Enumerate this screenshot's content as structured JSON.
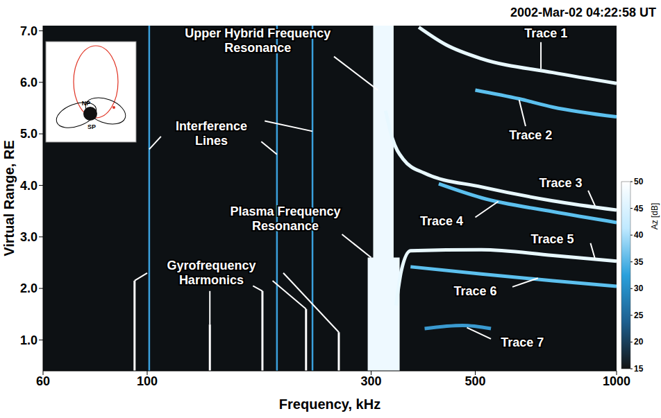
{
  "chart_data": {
    "type": "line",
    "title": "2002-Mar-02 04:22:58 UT",
    "x_label": "Frequency, kHz",
    "y_label": "Virtual Range, RE",
    "log": "x",
    "grid": false,
    "xlim": [
      60,
      1000
    ],
    "xticks": [
      60,
      100,
      300,
      500,
      1000
    ],
    "ylim": [
      0.4,
      7.1
    ],
    "yticks": [
      {
        "value": 1,
        "label": "1.0"
      },
      {
        "value": 2,
        "label": "2.0"
      },
      {
        "value": 3,
        "label": "3.0"
      },
      {
        "value": 4,
        "label": "4.0"
      },
      {
        "value": 5,
        "label": "5.0"
      },
      {
        "value": 6,
        "label": "6.0"
      },
      {
        "value": 7,
        "label": "7.0"
      }
    ],
    "series": [
      {
        "name": "Trace 1",
        "color": "#e8f8ff",
        "x": [
          379,
          433,
          515,
          731,
          1000
        ],
        "values": [
          7.07,
          6.73,
          6.46,
          6.19,
          5.98
        ],
        "label": {
          "x": 707,
          "y": 6.95
        },
        "pointer": {
          "from": [
            690,
            6.78
          ],
          "to": [
            690,
            6.26
          ]
        }
      },
      {
        "name": "Trace 2",
        "color": "#5cc0ee",
        "x": [
          500,
          620,
          731,
          1000
        ],
        "values": [
          5.85,
          5.68,
          5.52,
          5.33
        ],
        "label": {
          "x": 656,
          "y": 4.97
        },
        "pointer": {
          "from": [
            640,
            5.15
          ],
          "to": [
            620,
            5.66
          ]
        }
      },
      {
        "name": "Trace 3",
        "color": "#e8f8ff",
        "x": [
          322,
          333,
          351,
          389,
          515,
          731,
          1000
        ],
        "values": [
          5.45,
          4.91,
          4.51,
          4.24,
          3.97,
          3.7,
          3.52
        ],
        "label": {
          "x": 760,
          "y": 4.05
        },
        "pointer": {
          "from": [
            870,
            3.9
          ],
          "to": [
            900,
            3.6
          ]
        }
      },
      {
        "name": "Trace 4",
        "color": "#5cc0ee",
        "x": [
          418,
          515,
          731,
          1000
        ],
        "values": [
          4.03,
          3.76,
          3.49,
          3.28
        ],
        "label": {
          "x": 424,
          "y": 3.3
        },
        "pointer": {
          "from": [
            500,
            3.38
          ],
          "to": [
            560,
            3.69
          ]
        }
      },
      {
        "name": "Trace 5",
        "color": "#e8f8ff",
        "x": [
          339,
          348,
          364,
          515,
          731,
          1000
        ],
        "values": [
          1.67,
          2.35,
          2.73,
          2.75,
          2.64,
          2.53
        ],
        "label": {
          "x": 730,
          "y": 2.95
        },
        "pointer": {
          "from": [
            880,
            2.88
          ],
          "to": [
            900,
            2.57
          ]
        }
      },
      {
        "name": "Trace 6",
        "color": "#5cc0ee",
        "x": [
          364,
          515,
          731,
          1000
        ],
        "values": [
          2.42,
          2.28,
          2.15,
          2.04
        ],
        "label": {
          "x": 500,
          "y": 1.95
        },
        "pointer": {
          "from": [
            600,
            2.03
          ],
          "to": [
            680,
            2.2
          ]
        }
      },
      {
        "name": "Trace 7",
        "color": "#3a9ad0",
        "x": [
          390,
          470,
          540
        ],
        "values": [
          1.22,
          1.28,
          1.22
        ],
        "label": {
          "x": 630,
          "y": 0.95
        },
        "pointer": {
          "from": [
            540,
            1.02
          ],
          "to": [
            480,
            1.24
          ]
        }
      }
    ],
    "bands": {
      "color": "#eef9ff",
      "items": [
        {
          "x": [
            303,
            335
          ],
          "y": [
            0.4,
            7.1
          ]
        },
        {
          "x": [
            295,
            345
          ],
          "y": [
            0.4,
            2.6
          ]
        }
      ]
    },
    "interference_lines": {
      "color": "#3aa0dc",
      "x": [
        101,
        189,
        225
      ]
    },
    "gyro_harmonics": {
      "color": "#ffffff",
      "x": [
        94,
        136,
        176,
        218,
        256
      ],
      "top": [
        2.15,
        1.3,
        1.95,
        1.6,
        1.15
      ]
    },
    "annotations": [
      {
        "text": [
          "Upper Hybrid Frequency",
          "Resonance"
        ],
        "x": 172,
        "y": 6.95,
        "pointers": [
          {
            "from": [
              250,
              6.5
            ],
            "to": [
              310,
              5.85
            ]
          }
        ]
      },
      {
        "text": [
          "Interference",
          "Lines"
        ],
        "x": 137,
        "y": 5.15,
        "pointers": [
          {
            "from": [
              107,
              4.95
            ],
            "to": [
              101,
              4.7
            ]
          },
          {
            "from": [
              175,
              4.85
            ],
            "to": [
              189,
              4.6
            ]
          },
          {
            "from": [
              178,
              5.25
            ],
            "to": [
              225,
              5.05
            ]
          }
        ]
      },
      {
        "text": [
          "Plasma Frequency",
          "Resonance"
        ],
        "x": 197,
        "y": 3.5,
        "pointers": [
          {
            "from": [
              260,
              3.05
            ],
            "to": [
              300,
              2.6
            ]
          }
        ]
      },
      {
        "text": [
          "Gyrofrequency",
          "Harmonics"
        ],
        "x": 137,
        "y": 2.45,
        "pointers": [
          {
            "from": [
              100,
              2.3
            ],
            "to": [
              94,
              2.15
            ]
          },
          {
            "from": [
              136,
              1.95
            ],
            "to": [
              136,
              1.3
            ]
          },
          {
            "from": [
              168,
              2.05
            ],
            "to": [
              176,
              1.95
            ]
          },
          {
            "from": [
              185,
              2.15
            ],
            "to": [
              218,
              1.6
            ]
          },
          {
            "from": [
              195,
              2.3
            ],
            "to": [
              256,
              1.15
            ]
          }
        ]
      }
    ],
    "colorbar": {
      "label": "Az [dB]",
      "range": [
        15,
        50
      ],
      "ticks": [
        15,
        20,
        25,
        30,
        35,
        40,
        45,
        50
      ],
      "colors": [
        "#141414",
        "#1d5f8f",
        "#2aa0dc",
        "#bfe9ff",
        "#ffffff"
      ]
    },
    "inset": {
      "labels": [
        "NP",
        "SP"
      ]
    }
  }
}
